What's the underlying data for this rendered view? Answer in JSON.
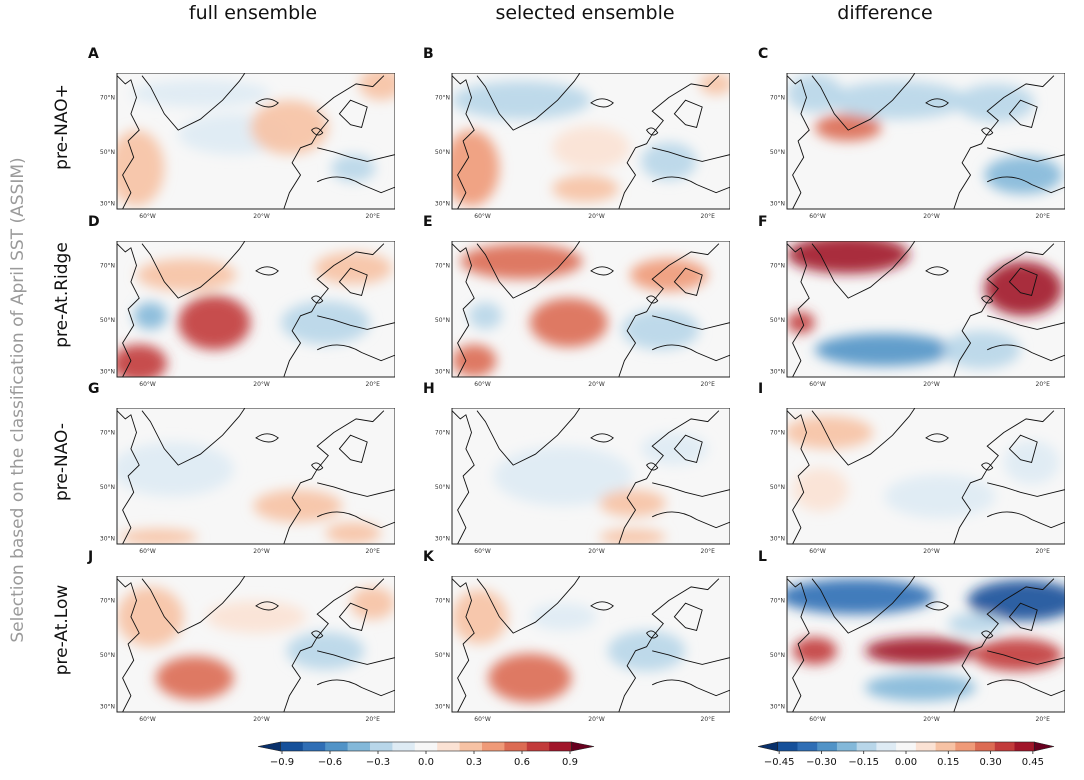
{
  "column_titles": [
    "full ensemble",
    "selected ensemble",
    "difference"
  ],
  "y_axis_title": "Selection based on the classification of April SST (ASSIM)",
  "row_labels": [
    "pre-NAO+",
    "pre-At.Ridge",
    "pre-NAO-",
    "pre-At.Low"
  ],
  "panel_letters": [
    "A",
    "B",
    "C",
    "D",
    "E",
    "F",
    "G",
    "H",
    "I",
    "J",
    "K",
    "L"
  ],
  "map_ticks": {
    "lat": [
      "70°N",
      "50°N",
      "30°N"
    ],
    "lon": [
      "60°W",
      "20°W",
      "20°E"
    ]
  },
  "colors": {
    "text_gray": "#9a9a9a",
    "ramp": [
      "#08306b",
      "#15509a",
      "#2f6eb5",
      "#5193c7",
      "#83b8d9",
      "#b8d6e9",
      "#deebf4",
      "#f7f7f7",
      "#fbe2d4",
      "#f7c2a4",
      "#ef9a78",
      "#dc6b53",
      "#c23b3b",
      "#a11529",
      "#67001f"
    ]
  },
  "chart_data": [
    {
      "type": "heatmap",
      "title": "full / selected ensemble colorbar",
      "ticks": [
        "−0.9",
        "−0.6",
        "−0.3",
        "0.0",
        "0.3",
        "0.6",
        "0.9"
      ],
      "range": [
        -1.05,
        1.05
      ]
    },
    {
      "type": "heatmap",
      "title": "difference colorbar",
      "ticks": [
        "−0.45",
        "−0.30",
        "−0.15",
        "0.00",
        "0.15",
        "0.30",
        "0.45"
      ],
      "range": [
        -0.525,
        0.525
      ]
    }
  ]
}
